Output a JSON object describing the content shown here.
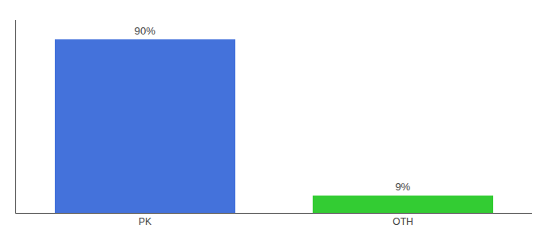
{
  "chart_data": {
    "type": "bar",
    "categories": [
      "PK",
      "OTH"
    ],
    "values": [
      90,
      9
    ],
    "value_labels": [
      "90%",
      "9%"
    ],
    "data_labels": true,
    "colors": [
      "#4472db",
      "#33cc33"
    ],
    "ylim": [
      0,
      100
    ],
    "grid": false,
    "tick_labels": "x"
  }
}
